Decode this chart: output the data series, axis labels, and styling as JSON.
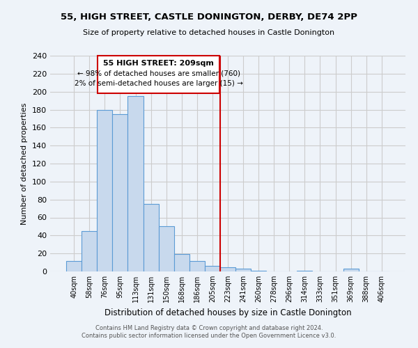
{
  "title": "55, HIGH STREET, CASTLE DONINGTON, DERBY, DE74 2PP",
  "subtitle": "Size of property relative to detached houses in Castle Donington",
  "xlabel": "Distribution of detached houses by size in Castle Donington",
  "ylabel": "Number of detached properties",
  "footnote1": "Contains HM Land Registry data © Crown copyright and database right 2024.",
  "footnote2": "Contains public sector information licensed under the Open Government Licence v3.0.",
  "bin_labels": [
    "40sqm",
    "58sqm",
    "76sqm",
    "95sqm",
    "113sqm",
    "131sqm",
    "150sqm",
    "168sqm",
    "186sqm",
    "205sqm",
    "223sqm",
    "241sqm",
    "260sqm",
    "278sqm",
    "296sqm",
    "314sqm",
    "333sqm",
    "351sqm",
    "369sqm",
    "388sqm",
    "406sqm"
  ],
  "bar_heights": [
    12,
    45,
    180,
    175,
    195,
    75,
    50,
    19,
    12,
    6,
    5,
    3,
    1,
    0,
    0,
    1,
    0,
    0,
    3,
    0,
    0
  ],
  "bar_color": "#c8d9ed",
  "bar_edge_color": "#5b9bd5",
  "grid_color": "#cccccc",
  "background_color": "#eef3f9",
  "vline_color": "#cc0000",
  "annotation_title": "55 HIGH STREET: 209sqm",
  "annotation_line1": "← 98% of detached houses are smaller (760)",
  "annotation_line2": "2% of semi-detached houses are larger (15) →",
  "annotation_box_color": "#ffffff",
  "annotation_border_color": "#cc0000",
  "ylim": [
    0,
    240
  ],
  "yticks": [
    0,
    20,
    40,
    60,
    80,
    100,
    120,
    140,
    160,
    180,
    200,
    220,
    240
  ]
}
